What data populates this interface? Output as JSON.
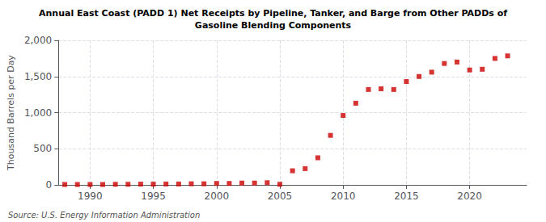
{
  "chart_data": {
    "type": "scatter",
    "title": "Annual East Coast (PADD 1) Net Receipts by Pipeline, Tanker, and Barge from Other PADDs of\nGasoline Blending Components",
    "ylabel": "Thousand Barrels per Day",
    "annotations": [
      "Source: U.S. Energy Information Administration"
    ],
    "x": [
      1988,
      1989,
      1990,
      1991,
      1992,
      1993,
      1994,
      1995,
      1996,
      1997,
      1998,
      1999,
      2000,
      2001,
      2002,
      2003,
      2004,
      2005,
      2006,
      2007,
      2008,
      2009,
      2010,
      2011,
      2012,
      2013,
      2014,
      2015,
      2016,
      2017,
      2018,
      2019,
      2020,
      2021,
      2022,
      2023
    ],
    "values": [
      5,
      5,
      5,
      5,
      8,
      8,
      10,
      10,
      12,
      12,
      15,
      15,
      20,
      20,
      25,
      25,
      30,
      8,
      195,
      225,
      375,
      685,
      960,
      1130,
      1320,
      1330,
      1320,
      1430,
      1500,
      1560,
      1680,
      1700,
      1590,
      1600,
      1750,
      1785
    ],
    "color": "#cc0000",
    "marker": "square",
    "xlim": [
      1987.5,
      2024.5
    ],
    "xticks": [
      1990,
      1995,
      2000,
      2005,
      2010,
      2015,
      2020
    ],
    "ylim": [
      0,
      2000
    ],
    "yticks": [
      0,
      500,
      {
        "value": 1000,
        "label": "1,000"
      },
      {
        "value": 1500,
        "label": "1,500"
      },
      {
        "value": 2000,
        "label": "2,000"
      }
    ],
    "grid": true
  }
}
